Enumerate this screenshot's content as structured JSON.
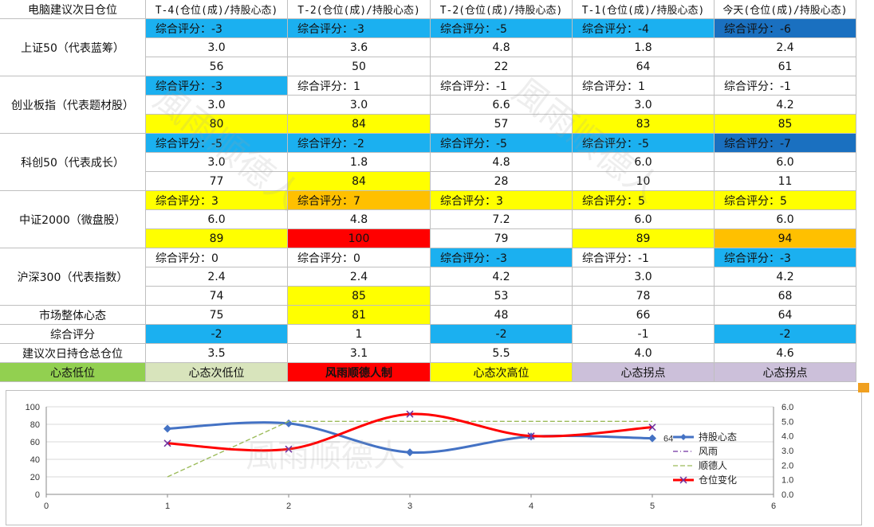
{
  "sheet": {
    "corner_header": "电脑建议次日仓位",
    "column_headers": [
      "T-4(仓位(成)/持股心态)",
      "T-2(仓位(成)/持股心态)",
      "T-2(仓位(成)/持股心态)",
      "T-1(仓位(成)/持股心态)",
      "今天(仓位(成)/持股心态)"
    ],
    "groups": [
      {
        "label": "上证50（代表蓝筹）",
        "score": [
          "综合评分：-3",
          "综合评分：-3",
          "综合评分：-5",
          "综合评分：-4",
          "综合评分：-6"
        ],
        "position": [
          "3.0",
          "3.6",
          "4.8",
          "1.8",
          "2.4"
        ],
        "mood": [
          "56",
          "50",
          "22",
          "64",
          "61"
        ],
        "score_colors": [
          "#1bb0f0",
          "#1bb0f0",
          "#1bb0f0",
          "#1bb0f0",
          "#1a70c0"
        ],
        "mood_colors": [
          "#ffffff",
          "#ffffff",
          "#ffffff",
          "#ffffff",
          "#ffffff"
        ]
      },
      {
        "label": "创业板指（代表题材股）",
        "score": [
          "综合评分：-3",
          "综合评分：1",
          "综合评分：-1",
          "综合评分：1",
          "综合评分：-1"
        ],
        "position": [
          "3.0",
          "3.0",
          "6.6",
          "3.0",
          "4.2"
        ],
        "mood": [
          "80",
          "84",
          "57",
          "83",
          "85"
        ],
        "score_colors": [
          "#1bb0f0",
          "#ffffff",
          "#ffffff",
          "#ffffff",
          "#ffffff"
        ],
        "mood_colors": [
          "#ffff00",
          "#ffff00",
          "#ffffff",
          "#ffff00",
          "#ffff00"
        ]
      },
      {
        "label": "科创50（代表成长）",
        "score": [
          "综合评分：-5",
          "综合评分：-2",
          "综合评分：-5",
          "综合评分：-5",
          "综合评分：-7"
        ],
        "position": [
          "3.0",
          "1.8",
          "4.8",
          "6.0",
          "6.0"
        ],
        "mood": [
          "77",
          "84",
          "28",
          "10",
          "11"
        ],
        "score_colors": [
          "#1bb0f0",
          "#1bb0f0",
          "#1bb0f0",
          "#1bb0f0",
          "#1a70c0"
        ],
        "mood_colors": [
          "#ffffff",
          "#ffff00",
          "#ffffff",
          "#ffffff",
          "#ffffff"
        ]
      },
      {
        "label": "中证2000（微盘股）",
        "score": [
          "综合评分：3",
          "综合评分：7",
          "综合评分：3",
          "综合评分：5",
          "综合评分：5"
        ],
        "position": [
          "6.0",
          "4.8",
          "7.2",
          "6.0",
          "6.0"
        ],
        "mood": [
          "89",
          "100",
          "79",
          "89",
          "94"
        ],
        "score_colors": [
          "#ffff00",
          "#ffc000",
          "#ffff00",
          "#ffff00",
          "#ffff00"
        ],
        "mood_colors": [
          "#ffff00",
          "#ff0000",
          "#ffffff",
          "#ffff00",
          "#ffc000"
        ]
      },
      {
        "label": "沪深300（代表指数）",
        "score": [
          "综合评分：0",
          "综合评分：0",
          "综合评分：-3",
          "综合评分：-1",
          "综合评分：-3"
        ],
        "position": [
          "2.4",
          "2.4",
          "4.2",
          "3.0",
          "4.2"
        ],
        "mood": [
          "74",
          "85",
          "53",
          "78",
          "68"
        ],
        "score_colors": [
          "#ffffff",
          "#ffffff",
          "#1bb0f0",
          "#ffffff",
          "#1bb0f0"
        ],
        "mood_colors": [
          "#ffffff",
          "#ffff00",
          "#ffffff",
          "#ffffff",
          "#ffffff"
        ]
      }
    ],
    "summary_rows": [
      {
        "label": "市场整体心态",
        "values": [
          "75",
          "81",
          "48",
          "66",
          "64"
        ],
        "colors": [
          "#ffffff",
          "#ffff00",
          "#ffffff",
          "#ffffff",
          "#ffffff"
        ]
      },
      {
        "label": "综合评分",
        "values": [
          "-2",
          "1",
          "-2",
          "-1",
          "-2"
        ],
        "colors": [
          "#1bb0f0",
          "#ffffff",
          "#1bb0f0",
          "#ffffff",
          "#1bb0f0"
        ]
      },
      {
        "label": "建议次日持仓总仓位",
        "values": [
          "3.5",
          "3.1",
          "5.5",
          "4.0",
          "4.6"
        ],
        "colors": [
          "#ffffff",
          "#ffffff",
          "#ffffff",
          "#ffffff",
          "#ffffff"
        ]
      }
    ],
    "legend_row": {
      "labels": [
        "心态低位",
        "心态次低位",
        "风雨顺德人制",
        "心态次高位",
        "心态拐点",
        "心态拐点"
      ],
      "colors": [
        "#92d050",
        "#d8e4bc",
        "#ff0000",
        "#ffff00",
        "#ccc0da",
        "#ccc0da"
      ]
    }
  },
  "watermark": "風雨顺德人",
  "chart_data": {
    "type": "line",
    "x": [
      1,
      2,
      3,
      4,
      5
    ],
    "xlim": [
      0,
      6
    ],
    "xticks": [
      "0",
      "1",
      "2",
      "3",
      "4",
      "5",
      "6"
    ],
    "y_left_lim": [
      0,
      100
    ],
    "y_left_ticks": [
      "0",
      "20",
      "40",
      "60",
      "80",
      "100"
    ],
    "y_right_lim": [
      0,
      6
    ],
    "y_right_ticks": [
      "0.0",
      "1.0",
      "2.0",
      "3.0",
      "4.0",
      "5.0",
      "6.0"
    ],
    "series": [
      {
        "name": "持股心态",
        "axis": "left",
        "values": [
          75,
          81,
          48,
          66,
          64
        ],
        "color": "#4472c4",
        "marker": "diamond",
        "smooth": true
      },
      {
        "name": "风雨",
        "axis": "right",
        "values": [
          null,
          null,
          null,
          null,
          null
        ],
        "color": "#7030a0",
        "style": "dash-dot"
      },
      {
        "name": "顺德人",
        "axis": "right",
        "values": [
          1.2,
          5.0,
          5.0,
          5.0,
          5.0
        ],
        "color": "#9bbb59",
        "style": "dash"
      },
      {
        "name": "仓位变化",
        "axis": "right",
        "values": [
          3.5,
          3.1,
          5.5,
          4.0,
          4.6
        ],
        "color": "#ff0000",
        "marker": "x",
        "smooth": true
      }
    ],
    "data_labels": [
      {
        "series": "持股心态",
        "index": 4,
        "text": "64"
      }
    ],
    "legend_position": "right",
    "grid": "horizontal"
  }
}
